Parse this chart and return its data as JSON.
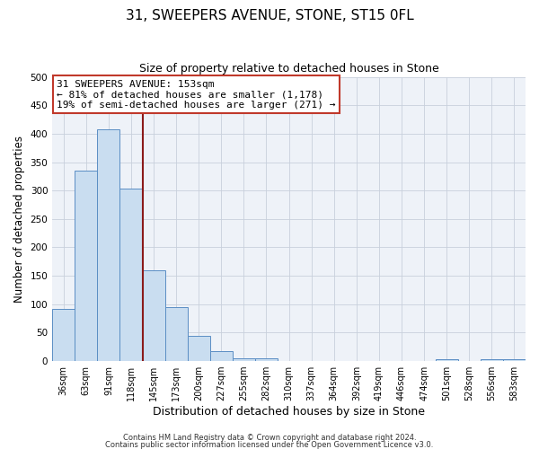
{
  "title": "31, SWEEPERS AVENUE, STONE, ST15 0FL",
  "subtitle": "Size of property relative to detached houses in Stone",
  "xlabel": "Distribution of detached houses by size in Stone",
  "ylabel": "Number of detached properties",
  "bin_labels": [
    "36sqm",
    "63sqm",
    "91sqm",
    "118sqm",
    "145sqm",
    "173sqm",
    "200sqm",
    "227sqm",
    "255sqm",
    "282sqm",
    "310sqm",
    "337sqm",
    "364sqm",
    "392sqm",
    "419sqm",
    "446sqm",
    "474sqm",
    "501sqm",
    "528sqm",
    "556sqm",
    "583sqm"
  ],
  "bar_heights": [
    92,
    335,
    408,
    304,
    160,
    95,
    45,
    18,
    5,
    5,
    0,
    0,
    0,
    0,
    0,
    0,
    0,
    3,
    0,
    3,
    3
  ],
  "bar_color": "#c9ddf0",
  "bar_edge_color": "#5b8ec4",
  "ylim": [
    0,
    500
  ],
  "yticks": [
    0,
    50,
    100,
    150,
    200,
    250,
    300,
    350,
    400,
    450,
    500
  ],
  "property_line_x": 4,
  "property_line_color": "#8b1a1a",
  "annotation_title": "31 SWEEPERS AVENUE: 153sqm",
  "annotation_line1": "← 81% of detached houses are smaller (1,178)",
  "annotation_line2": "19% of semi-detached houses are larger (271) →",
  "annotation_box_color": "#ffffff",
  "annotation_box_edge": "#c0392b",
  "footer_line1": "Contains HM Land Registry data © Crown copyright and database right 2024.",
  "footer_line2": "Contains public sector information licensed under the Open Government Licence v3.0.",
  "background_color": "#ffffff",
  "plot_bg_color": "#eef2f8",
  "grid_color": "#c8d0dc",
  "title_fontsize": 11,
  "subtitle_fontsize": 9,
  "ylabel_fontsize": 8.5,
  "xlabel_fontsize": 9,
  "tick_fontsize": 7,
  "annotation_fontsize": 8,
  "footer_fontsize": 6
}
